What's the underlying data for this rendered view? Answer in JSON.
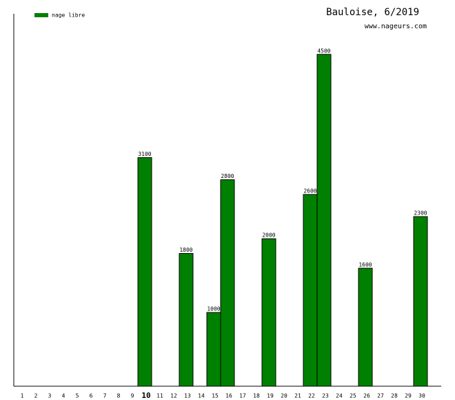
{
  "chart_data": {
    "type": "bar",
    "title": "Bauloise, 6/2019",
    "subtitle": "www.nageurs.com",
    "series": [
      {
        "name": "nage libre",
        "color": "#008000",
        "values": [
          null,
          null,
          null,
          null,
          null,
          null,
          null,
          null,
          null,
          3100,
          null,
          null,
          1800,
          null,
          1000,
          2800,
          null,
          null,
          2000,
          null,
          null,
          2600,
          4500,
          null,
          null,
          1600,
          null,
          null,
          null,
          2300
        ]
      }
    ],
    "categories": [
      "1",
      "2",
      "3",
      "4",
      "5",
      "6",
      "7",
      "8",
      "9",
      "10",
      "11",
      "12",
      "13",
      "14",
      "15",
      "16",
      "17",
      "18",
      "19",
      "20",
      "21",
      "22",
      "23",
      "24",
      "25",
      "26",
      "27",
      "28",
      "29",
      "30"
    ],
    "ylim": [
      0,
      5050
    ],
    "legend": "top-left"
  }
}
